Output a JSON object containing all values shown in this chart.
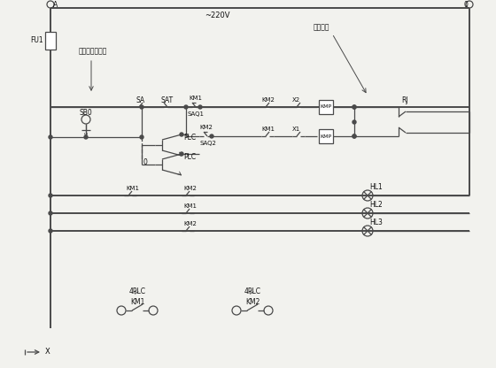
{
  "bg": "#f2f2ee",
  "lc": "#4a4a4a",
  "tc": "#111111",
  "voltage": "~220V",
  "lA": "A",
  "l0": "0",
  "lFU1": "FU1",
  "lSA": "SA",
  "lSAT": "SAT",
  "lSAQ1": "SAQ1",
  "lSAQ2": "SAQ2",
  "lKM1a": "KM1",
  "lKM2a": "KM2",
  "lKM2b": "KM2",
  "lKM1b": "KM1",
  "lX2": "X2",
  "lX1": "X1",
  "lRJ": "RJ",
  "lPLC1": "PLC",
  "lPLC2": "PLC",
  "lSB0": "SB0",
  "l0bus": "0",
  "lKM1_h1": "KM1",
  "lKM2_h1": "KM2",
  "lKM1_h2": "KM1",
  "lKM2_h3": "KM2",
  "lHL1": "HL1",
  "lHL2": "HL2",
  "lHL3": "HL3",
  "l4PLC1": "4PLC",
  "l4PLC2": "4PLC",
  "lKM1bot": "KM1",
  "lKM2bot": "KM2",
  "lLimit": "限位开关",
  "lRelay": "继电器控制开关",
  "lX": "X",
  "lKMP": "KMP"
}
